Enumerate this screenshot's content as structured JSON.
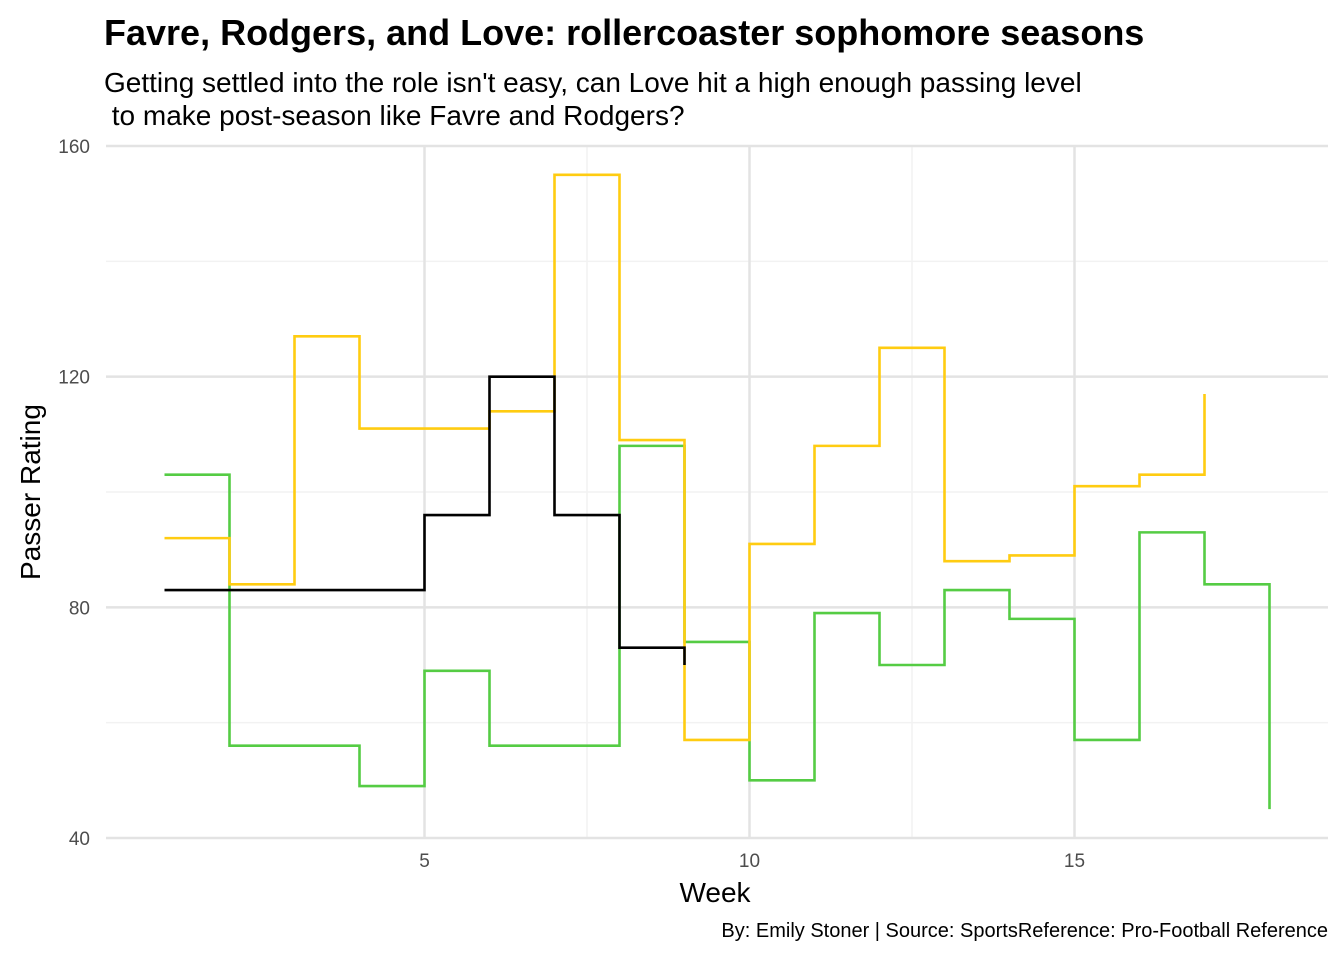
{
  "chart_data": {
    "type": "line",
    "step": true,
    "title": "Favre, Rodgers, and Love: rollercoaster sophomore seasons",
    "subtitle": "Getting settled into the role isn't easy, can Love hit a high enough passing level\n to make post-season like Favre and Rodgers?",
    "caption": "By: Emily Stoner | Source: SportsReference: Pro-Football Reference",
    "xlabel": "Week",
    "ylabel": "Passer Rating",
    "xlim": [
      0.1,
      18.9
    ],
    "ylim": [
      40,
      160
    ],
    "x_ticks": [
      5,
      10,
      15
    ],
    "y_ticks": [
      40,
      80,
      120,
      160
    ],
    "grid": true,
    "legend": "none",
    "series": [
      {
        "color": "#55cc44",
        "x": [
          1,
          2,
          3,
          4,
          5,
          6,
          7,
          8,
          9,
          10,
          11,
          12,
          13,
          14,
          15,
          16,
          17,
          18
        ],
        "y": [
          103,
          56,
          56,
          49,
          69,
          56,
          56,
          108,
          74,
          50,
          79,
          70,
          83,
          78,
          57,
          93,
          84,
          45
        ]
      },
      {
        "color": "#ffcc11",
        "x": [
          1,
          2,
          3,
          4,
          5,
          6,
          7,
          8,
          9,
          10,
          11,
          12,
          13,
          14,
          15,
          16,
          17
        ],
        "y": [
          92,
          84,
          127,
          111,
          111,
          114,
          155,
          109,
          57,
          91,
          108,
          125,
          88,
          89,
          101,
          103,
          117
        ]
      },
      {
        "color": "#000000",
        "x": [
          1,
          2,
          3,
          4,
          5,
          6,
          7,
          8,
          9
        ],
        "y": [
          83,
          83,
          83,
          83,
          96,
          120,
          96,
          73,
          70
        ]
      }
    ]
  }
}
